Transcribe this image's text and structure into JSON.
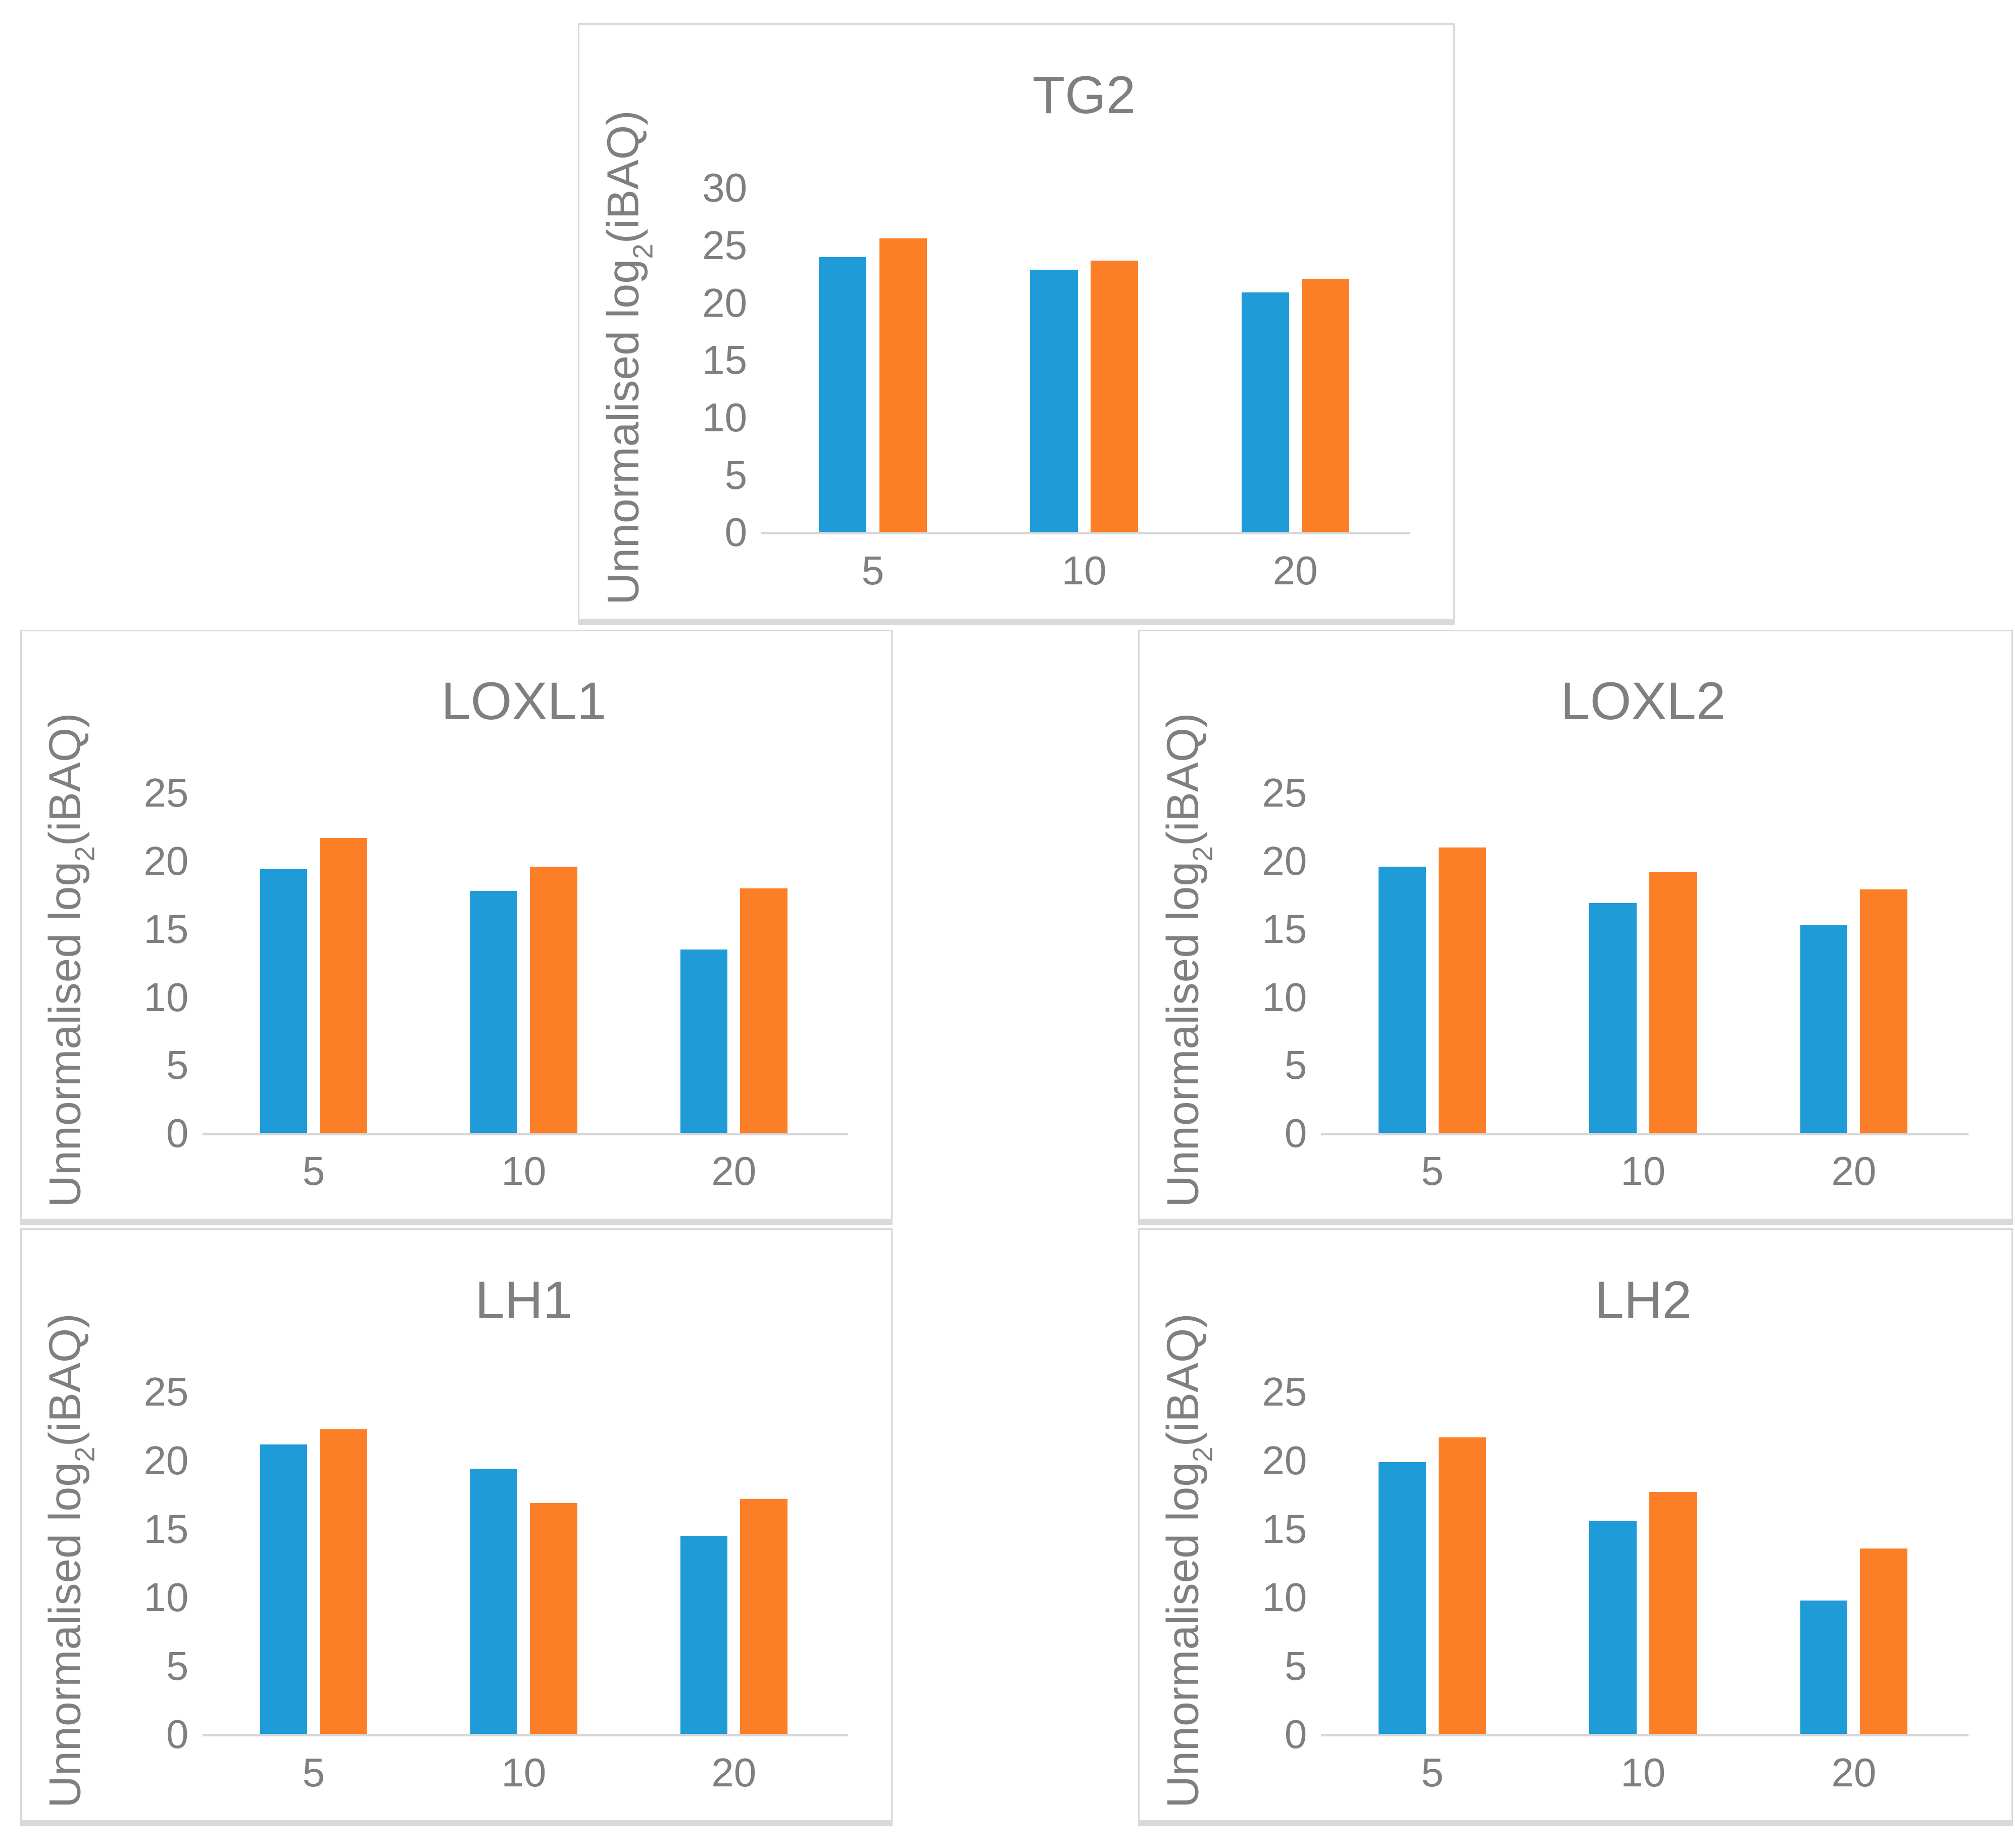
{
  "palette": {
    "series_blue": "#1F9BD8",
    "series_orange": "#FC7E26",
    "text_gray": "#7F7F7F",
    "axis_line_gray": "#D6D6D6",
    "panel_border_gray": "#D9D9D9"
  },
  "ylabel_parts": {
    "pre": "Unnormalised log",
    "sub": "2",
    "post": "(iBAQ)"
  },
  "chart_data": [
    {
      "type": "bar",
      "title": "TG2",
      "categories": [
        "5",
        "10",
        "20"
      ],
      "series": [
        {
          "name": "blue",
          "color": "#1F9BD8",
          "values": [
            24.0,
            22.9,
            20.9
          ]
        },
        {
          "name": "orange",
          "color": "#FC7E26",
          "values": [
            25.6,
            23.7,
            22.1
          ]
        }
      ],
      "xlabel": "",
      "ylabel": "Unnormalised log2(iBAQ)",
      "ylim": [
        0,
        30
      ],
      "yticks": [
        0,
        5,
        10,
        15,
        20,
        25,
        30
      ],
      "grid": false,
      "legend": "none"
    },
    {
      "type": "bar",
      "title": "LOXL1",
      "categories": [
        "5",
        "10",
        "20"
      ],
      "series": [
        {
          "name": "blue",
          "color": "#1F9BD8",
          "values": [
            19.4,
            17.8,
            13.5
          ]
        },
        {
          "name": "orange",
          "color": "#FC7E26",
          "values": [
            21.7,
            19.6,
            18.0
          ]
        }
      ],
      "xlabel": "",
      "ylabel": "Unnormalised log2(iBAQ)",
      "ylim": [
        0,
        25
      ],
      "yticks": [
        0,
        5,
        10,
        15,
        20,
        25
      ],
      "grid": false,
      "legend": "none"
    },
    {
      "type": "bar",
      "title": "LOXL2",
      "categories": [
        "5",
        "10",
        "20"
      ],
      "series": [
        {
          "name": "blue",
          "color": "#1F9BD8",
          "values": [
            19.6,
            16.9,
            15.3
          ]
        },
        {
          "name": "orange",
          "color": "#FC7E26",
          "values": [
            21.0,
            19.2,
            17.9
          ]
        }
      ],
      "xlabel": "",
      "ylabel": "Unnormalised log2(iBAQ)",
      "ylim": [
        0,
        25
      ],
      "yticks": [
        0,
        5,
        10,
        15,
        20,
        25
      ],
      "grid": false,
      "legend": "none"
    },
    {
      "type": "bar",
      "title": "LH1",
      "categories": [
        "5",
        "10",
        "20"
      ],
      "series": [
        {
          "name": "blue",
          "color": "#1F9BD8",
          "values": [
            21.2,
            19.4,
            14.5
          ]
        },
        {
          "name": "orange",
          "color": "#FC7E26",
          "values": [
            22.3,
            16.9,
            17.2
          ]
        }
      ],
      "xlabel": "",
      "ylabel": "Unnormalised log2(iBAQ)",
      "ylim": [
        0,
        25
      ],
      "yticks": [
        0,
        5,
        10,
        15,
        20,
        25
      ],
      "grid": false,
      "legend": "none"
    },
    {
      "type": "bar",
      "title": "LH2",
      "categories": [
        "5",
        "10",
        "20"
      ],
      "series": [
        {
          "name": "blue",
          "color": "#1F9BD8",
          "values": [
            19.9,
            15.6,
            9.8
          ]
        },
        {
          "name": "orange",
          "color": "#FC7E26",
          "values": [
            21.7,
            17.7,
            13.6
          ]
        }
      ],
      "xlabel": "",
      "ylabel": "Unnormalised log2(iBAQ)",
      "ylim": [
        0,
        25
      ],
      "yticks": [
        0,
        5,
        10,
        15,
        20,
        25
      ],
      "grid": false,
      "legend": "none"
    }
  ]
}
